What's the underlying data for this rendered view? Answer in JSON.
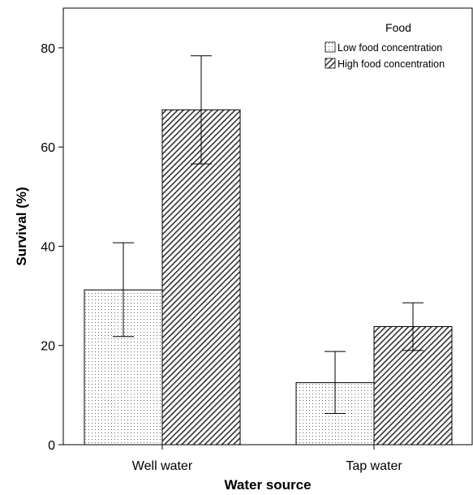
{
  "chart_data": {
    "type": "bar",
    "xlabel": "Water source",
    "ylabel": "Survival (%)",
    "ylim": [
      0,
      88
    ],
    "yticks": [
      0,
      20,
      40,
      60,
      80
    ],
    "categories": [
      "Well water",
      "Tap water"
    ],
    "legend": {
      "title": "Food",
      "placement": "top-right"
    },
    "series": [
      {
        "name": "Low food concentration",
        "pattern": "dotted",
        "values": [
          31.2,
          12.5
        ],
        "error_low": [
          21.8,
          6.3
        ],
        "error_high": [
          40.7,
          18.8
        ]
      },
      {
        "name": "High food concentration",
        "pattern": "hatched",
        "values": [
          67.5,
          23.8
        ],
        "error_low": [
          56.6,
          19.0
        ],
        "error_high": [
          78.4,
          28.6
        ]
      }
    ],
    "grid": false
  }
}
